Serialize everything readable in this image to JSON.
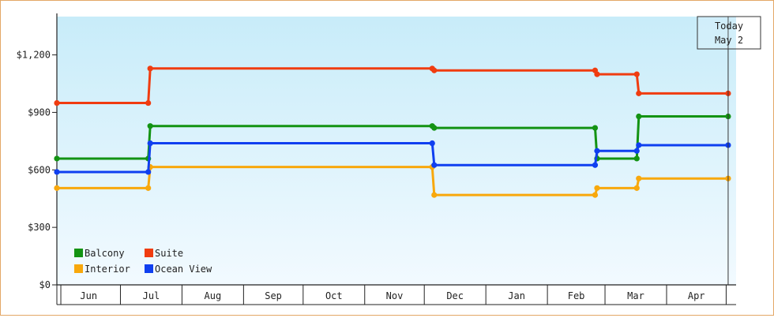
{
  "chart_data": {
    "type": "line",
    "title": "",
    "xlabel": "",
    "ylabel": "",
    "ylim": [
      0,
      1400
    ],
    "y_ticks": [
      0,
      300,
      600,
      900,
      1200
    ],
    "y_tick_labels": [
      "$0",
      "$300",
      "$600",
      "$900",
      "$1,200"
    ],
    "x_domain": [
      "2023-05-30",
      "2024-05-06"
    ],
    "month_ticks": [
      {
        "label": "Jun",
        "start": "2023-06-01"
      },
      {
        "label": "Jul",
        "start": "2023-07-01"
      },
      {
        "label": "Aug",
        "start": "2023-08-01"
      },
      {
        "label": "Sep",
        "start": "2023-09-01"
      },
      {
        "label": "Oct",
        "start": "2023-10-01"
      },
      {
        "label": "Nov",
        "start": "2023-11-01"
      },
      {
        "label": "Dec",
        "start": "2023-12-01"
      },
      {
        "label": "Jan",
        "start": "2024-01-01"
      },
      {
        "label": "Feb",
        "start": "2024-02-01"
      },
      {
        "label": "Mar",
        "start": "2024-03-01"
      },
      {
        "label": "Apr",
        "start": "2024-04-01"
      },
      {
        "label": "",
        "start": "2024-05-01"
      }
    ],
    "today_marker": {
      "line1": "Today",
      "line2": "May 2",
      "date": "2024-05-02"
    },
    "grid": false,
    "background_gradient": [
      "#c8ecf9",
      "#f2faff"
    ],
    "legend_position": "bottom-left",
    "series": [
      {
        "name": "Balcony",
        "color": "#139313",
        "points": [
          {
            "x": "2023-05-30",
            "y": 659
          },
          {
            "x": "2023-07-15",
            "y": 659
          },
          {
            "x": "2023-07-16",
            "y": 829
          },
          {
            "x": "2023-12-05",
            "y": 829
          },
          {
            "x": "2023-12-06",
            "y": 819
          },
          {
            "x": "2024-02-25",
            "y": 819
          },
          {
            "x": "2024-02-26",
            "y": 659
          },
          {
            "x": "2024-03-17",
            "y": 659
          },
          {
            "x": "2024-03-18",
            "y": 879
          },
          {
            "x": "2024-05-02",
            "y": 879
          }
        ]
      },
      {
        "name": "Suite",
        "color": "#f03c10",
        "points": [
          {
            "x": "2023-05-30",
            "y": 949
          },
          {
            "x": "2023-07-15",
            "y": 949
          },
          {
            "x": "2023-07-16",
            "y": 1129
          },
          {
            "x": "2023-12-05",
            "y": 1129
          },
          {
            "x": "2023-12-06",
            "y": 1119
          },
          {
            "x": "2024-02-25",
            "y": 1119
          },
          {
            "x": "2024-02-26",
            "y": 1099
          },
          {
            "x": "2024-03-17",
            "y": 1099
          },
          {
            "x": "2024-03-18",
            "y": 999
          },
          {
            "x": "2024-05-02",
            "y": 999
          }
        ]
      },
      {
        "name": "Interior",
        "color": "#f8a80c",
        "points": [
          {
            "x": "2023-05-30",
            "y": 505
          },
          {
            "x": "2023-07-15",
            "y": 505
          },
          {
            "x": "2023-07-16",
            "y": 615
          },
          {
            "x": "2023-12-05",
            "y": 615
          },
          {
            "x": "2023-12-06",
            "y": 469
          },
          {
            "x": "2024-02-25",
            "y": 469
          },
          {
            "x": "2024-02-26",
            "y": 505
          },
          {
            "x": "2024-03-17",
            "y": 505
          },
          {
            "x": "2024-03-18",
            "y": 555
          },
          {
            "x": "2024-05-02",
            "y": 555
          }
        ]
      },
      {
        "name": "Ocean View",
        "color": "#0f3ff0",
        "points": [
          {
            "x": "2023-05-30",
            "y": 589
          },
          {
            "x": "2023-07-15",
            "y": 589
          },
          {
            "x": "2023-07-16",
            "y": 739
          },
          {
            "x": "2023-12-05",
            "y": 739
          },
          {
            "x": "2023-12-06",
            "y": 625
          },
          {
            "x": "2024-02-25",
            "y": 625
          },
          {
            "x": "2024-02-26",
            "y": 699
          },
          {
            "x": "2024-03-17",
            "y": 699
          },
          {
            "x": "2024-03-18",
            "y": 729
          },
          {
            "x": "2024-05-02",
            "y": 729
          }
        ]
      }
    ],
    "legend_order": [
      "Balcony",
      "Suite",
      "Interior",
      "Ocean View"
    ]
  }
}
